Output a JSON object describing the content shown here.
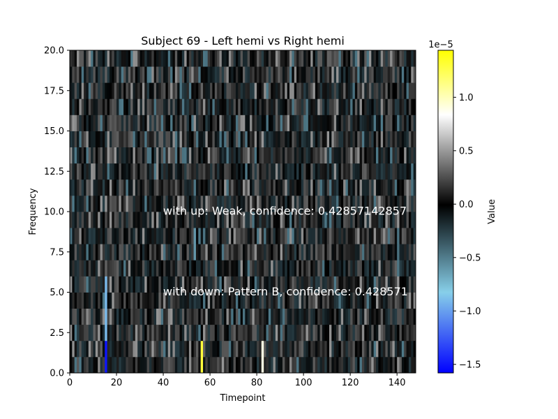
{
  "chart_data": {
    "type": "heatmap",
    "title": "Subject 69 - Left hemi vs Right hemi",
    "xlabel": "Timepoint",
    "ylabel": "Frequency",
    "xlim": [
      0,
      148
    ],
    "ylim": [
      0,
      20
    ],
    "x_ticks": [
      0,
      20,
      40,
      60,
      80,
      100,
      120,
      140
    ],
    "y_ticks": [
      0.0,
      2.5,
      5.0,
      7.5,
      10.0,
      12.5,
      15.0,
      17.5,
      20.0
    ],
    "y_tick_labels": [
      "0.0",
      "2.5",
      "5.0",
      "7.5",
      "10.0",
      "12.5",
      "15.0",
      "17.5",
      "20.0"
    ],
    "n_timepoints": 148,
    "n_frequency_bins": 20,
    "colorbar": {
      "label": "Value",
      "offset_label": "1e−5",
      "range": [
        -1.58,
        1.44
      ],
      "ticks": [
        -1.5,
        -1.0,
        -0.5,
        0.0,
        0.5,
        1.0
      ],
      "tick_labels": [
        "−1.5",
        "−1.0",
        "−0.5",
        "0.0",
        "0.5",
        "1.0"
      ],
      "colormap": [
        "#0000ff",
        "#87cfe9",
        "#000000",
        "#ffffff",
        "#ffff00"
      ]
    },
    "notable_values": [
      {
        "timepoint": 15,
        "frequency_range": [
          0,
          2.5
        ],
        "value": -1.5
      },
      {
        "timepoint": 15,
        "frequency_range": [
          2.5,
          6
        ],
        "value": -0.9
      },
      {
        "timepoint": 56,
        "frequency_range": [
          0,
          1.5
        ],
        "value": 1.3
      },
      {
        "timepoint": 82,
        "frequency_range": [
          0,
          1.5
        ],
        "value": 0.9
      },
      {
        "timepoint": 53,
        "frequency_range": [
          7,
          9
        ],
        "value": -0.6
      }
    ],
    "annotations": [
      {
        "text": "with up: Weak, confidence: 0.42857142857",
        "x": 40,
        "y": 10.0
      },
      {
        "text": "with down: Pattern B, confidence: 0.428571",
        "x": 40,
        "y": 5.0
      }
    ]
  }
}
